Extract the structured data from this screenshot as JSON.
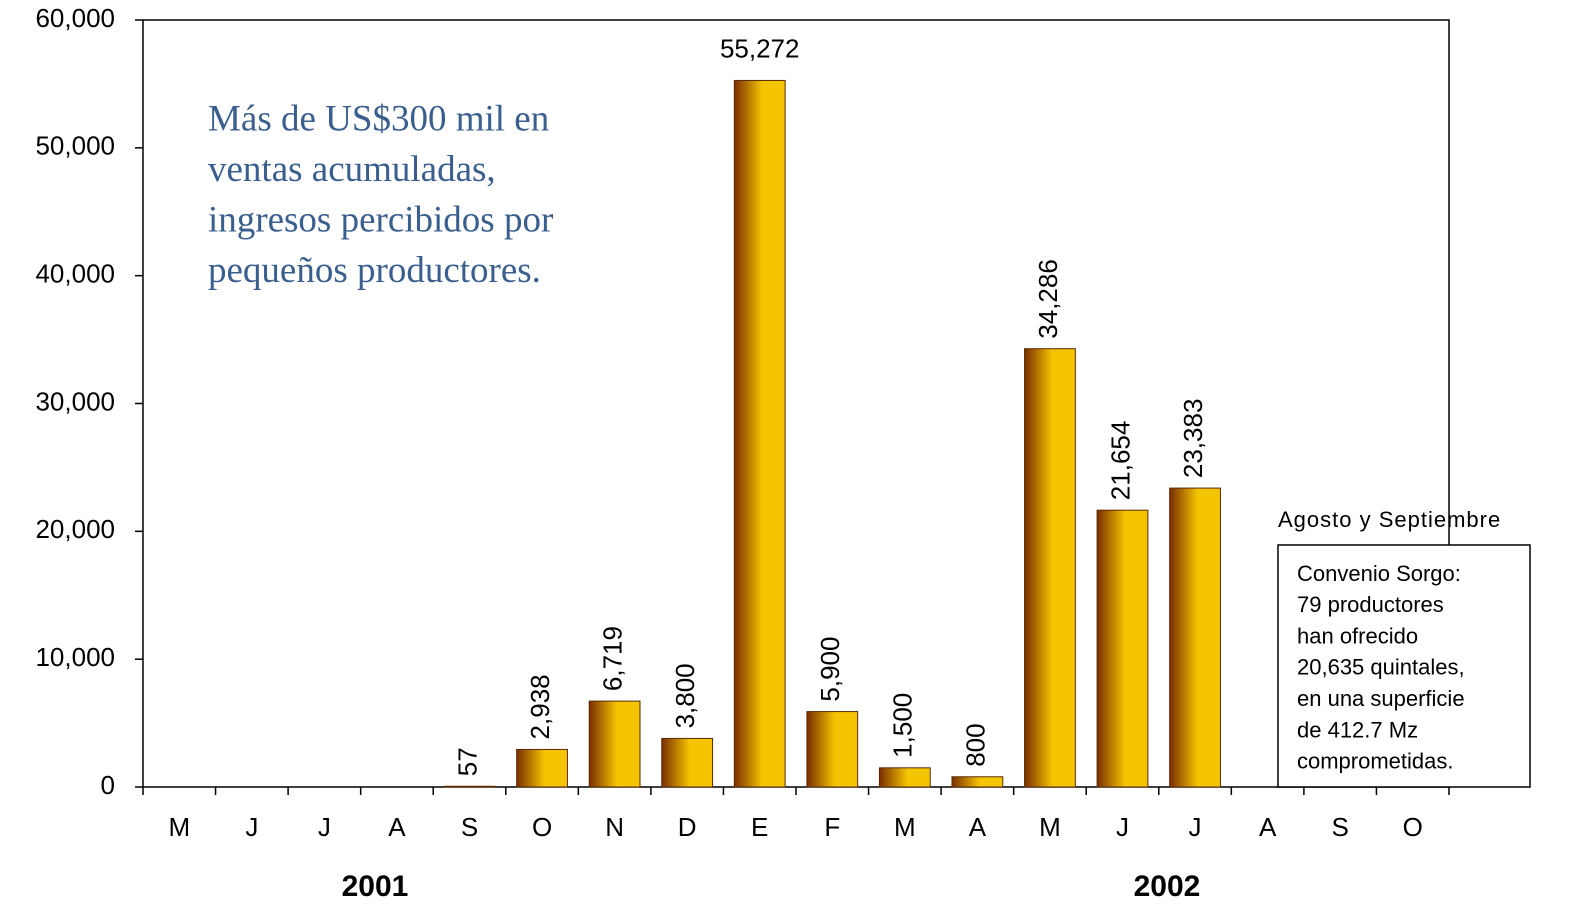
{
  "chart_data": {
    "type": "bar",
    "categories": [
      "M",
      "J",
      "J",
      "A",
      "S",
      "O",
      "N",
      "D",
      "E",
      "F",
      "M",
      "A",
      "M",
      "J",
      "J",
      "A",
      "S",
      "O"
    ],
    "values": [
      null,
      null,
      null,
      null,
      57,
      2938,
      6719,
      3800,
      55272,
      5900,
      1500,
      800,
      34286,
      21654,
      23383,
      null,
      null,
      null
    ],
    "value_labels": [
      null,
      null,
      null,
      null,
      "57",
      "2,938",
      "6,719",
      "3,800",
      "55,272",
      "5,900",
      "1,500",
      "800",
      "34,286",
      "21,654",
      "23,383",
      null,
      null,
      null
    ],
    "color": "#f5c400",
    "ylim": [
      0,
      60000
    ],
    "yticks": [
      0,
      {
        "value": 10000,
        "label": "10,000"
      },
      {
        "value": 20000,
        "label": "20,000"
      },
      {
        "value": 30000,
        "label": "30,000"
      },
      {
        "value": 40000,
        "label": "40,000"
      },
      {
        "value": 50000,
        "label": "50,000"
      },
      {
        "value": 60000,
        "label": "60,000"
      }
    ],
    "grid": false,
    "year_labels": [
      "2001",
      "2002"
    ],
    "annotation": [
      "Más de US$300 mil en",
      "ventas acumuladas,",
      "ingresos percibidos por",
      "pequeños productores."
    ],
    "box_title": "Agosto y Septiembre",
    "box_lines": [
      "Convenio Sorgo:",
      "79 productores",
      "han ofrecido",
      "20,635 quintales,",
      "en una superficie",
      "de 412.7 Mz",
      "comprometidas."
    ]
  }
}
